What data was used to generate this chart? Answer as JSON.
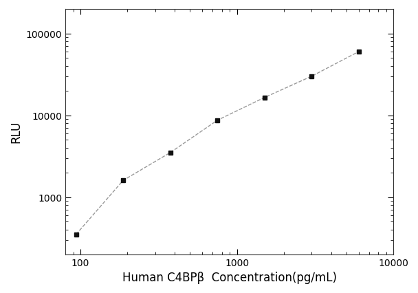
{
  "x": [
    93.75,
    187.5,
    375,
    750,
    1500,
    3000,
    6000
  ],
  "y": [
    350,
    1600,
    3500,
    8700,
    16500,
    30000,
    60000
  ],
  "xlabel": "Human C4BPβ  Concentration(pg/mL)",
  "ylabel": "RLU",
  "xlim": [
    80,
    10000
  ],
  "ylim": [
    200,
    200000
  ],
  "xticks": [
    100,
    1000,
    10000
  ],
  "yticks": [
    1000,
    10000,
    100000
  ],
  "marker": "s",
  "marker_color": "#111111",
  "line_color": "#999999",
  "marker_size": 5,
  "line_width": 1.0,
  "line_style": "--",
  "background_color": "#ffffff",
  "xlabel_fontsize": 12,
  "ylabel_fontsize": 12,
  "tick_fontsize": 10
}
